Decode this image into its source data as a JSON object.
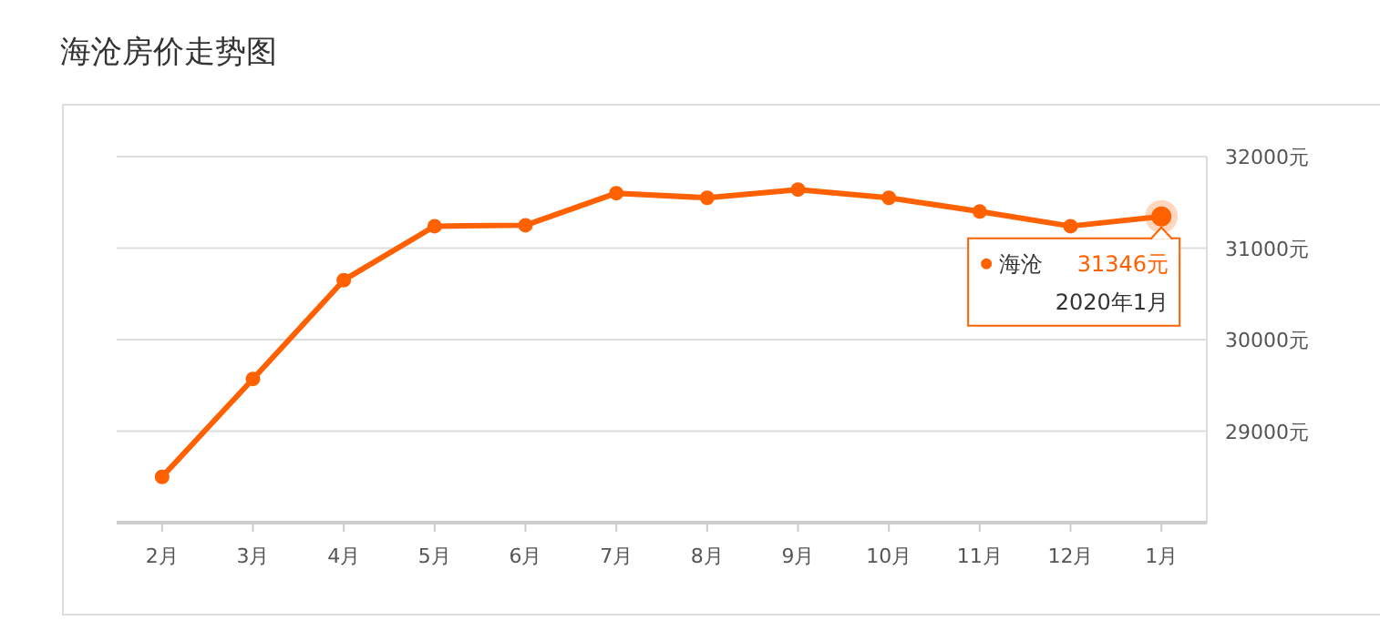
{
  "chart_data": {
    "type": "line",
    "title": "海沧房价走势图",
    "categories": [
      "2月",
      "3月",
      "4月",
      "5月",
      "6月",
      "7月",
      "8月",
      "9月",
      "10月",
      "11月",
      "12月",
      "1月"
    ],
    "series": [
      {
        "name": "海沧",
        "color": "#ff6000",
        "values": [
          28500,
          29570,
          30650,
          31240,
          31250,
          31600,
          31550,
          31640,
          31550,
          31400,
          31240,
          31346
        ],
        "value_labels": [
          null,
          null,
          null,
          null,
          null,
          null,
          null,
          null,
          null,
          null,
          null,
          "31346元"
        ]
      }
    ],
    "ylim": [
      28000,
      32000
    ],
    "yticks": [
      {
        "value": 29000,
        "label": "29000元"
      },
      {
        "value": 30000,
        "label": "30000元"
      },
      {
        "value": 31000,
        "label": "31000元"
      },
      {
        "value": 32000,
        "label": "32000元"
      }
    ],
    "grid": "y",
    "marker": "circle",
    "line_style": "solid",
    "annotations": [
      "2020年1月"
    ]
  }
}
